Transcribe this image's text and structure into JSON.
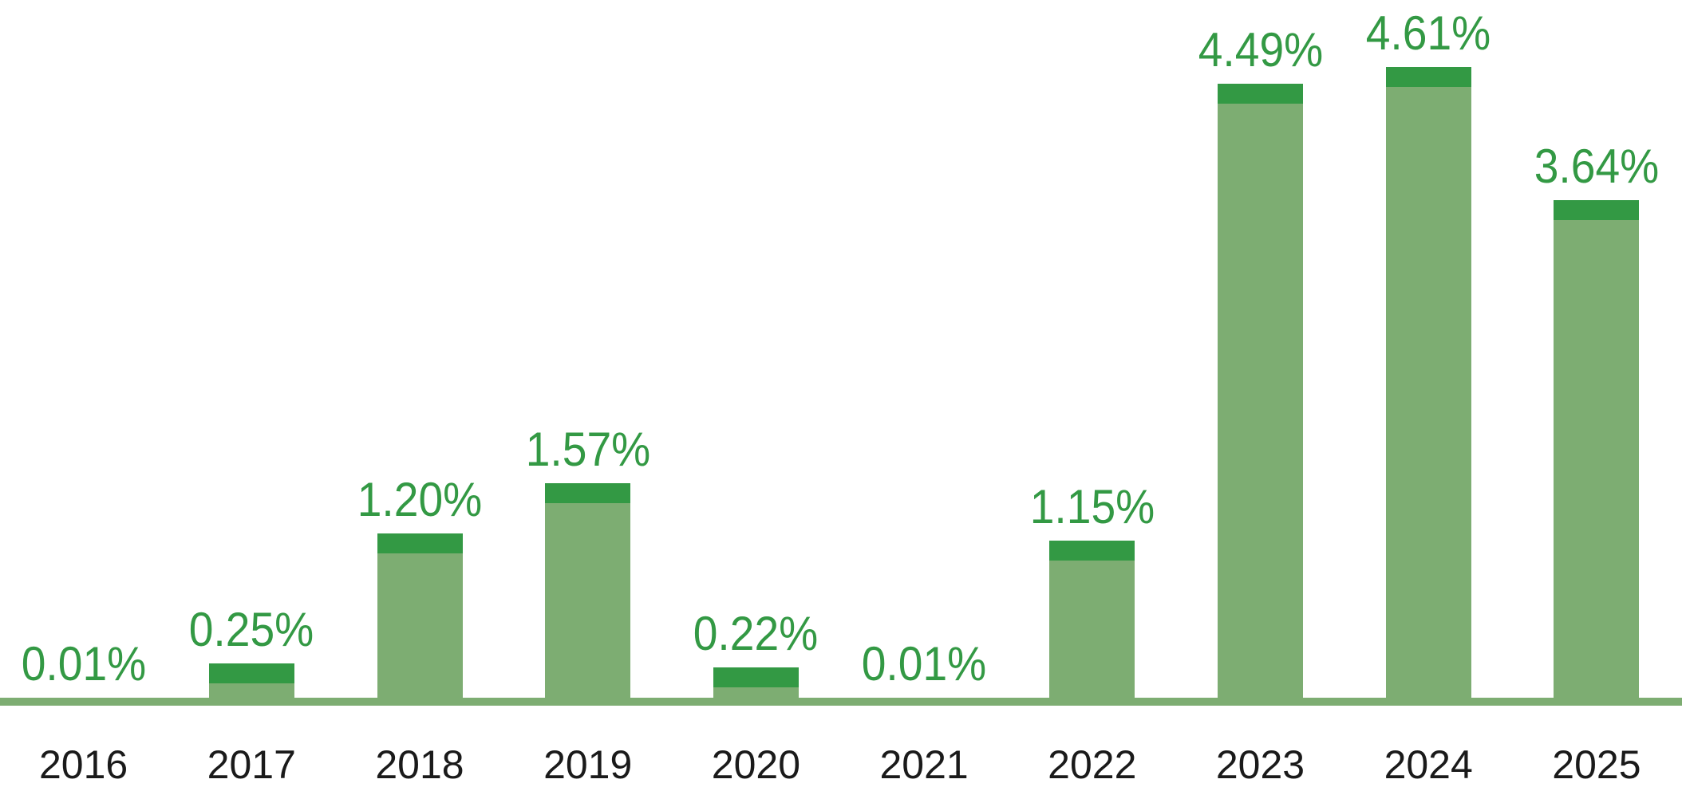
{
  "chart_data": {
    "type": "bar",
    "title": "",
    "xlabel": "",
    "ylabel": "",
    "categories": [
      "2016",
      "2017",
      "2018",
      "2019",
      "2020",
      "2021",
      "2022",
      "2023",
      "2024",
      "2025"
    ],
    "values": [
      0.01,
      0.25,
      1.2,
      1.57,
      0.22,
      0.01,
      1.15,
      4.49,
      4.61,
      3.64
    ],
    "value_labels": [
      "0.01%",
      "0.25%",
      "1.20%",
      "1.57%",
      "0.22%",
      "0.01%",
      "1.15%",
      "4.49%",
      "4.61%",
      "3.64%"
    ],
    "unit": "%",
    "ylim": [
      0,
      5
    ],
    "grid": false,
    "legend": null,
    "colors": {
      "background": "#FFFFFF",
      "bar_body": "#7DAD72",
      "bar_cap": "#339944",
      "baseline": "#7DAD72",
      "value_label_text": "#339944",
      "year_label_text": "#1A1A1A"
    },
    "style_notes": {
      "bar_cap_segment": "darker green segment at top of each visible bar",
      "axis_line": "thick light-green horizontal baseline, no y-axis, no gridlines"
    }
  }
}
